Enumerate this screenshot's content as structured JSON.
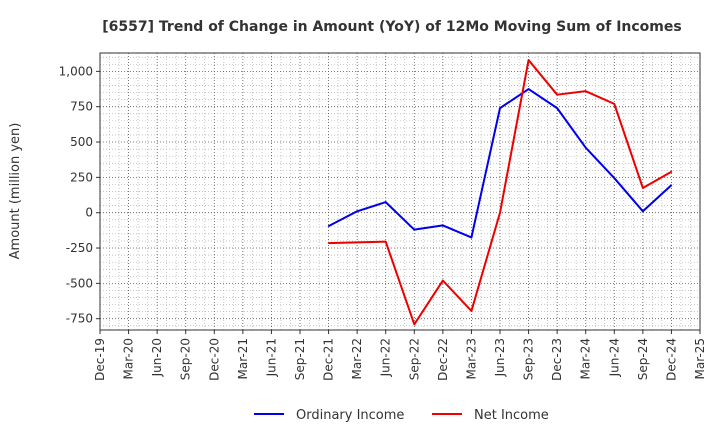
{
  "chart_data": {
    "type": "line",
    "title": "[6557]  Trend of Change in Amount (YoY) of 12Mo Moving Sum of Incomes",
    "ylabel": "Amount (million yen)",
    "xlabel": "",
    "ylim": [
      -830,
      1130
    ],
    "yticks": [
      -750,
      -500,
      -250,
      0,
      250,
      500,
      750,
      1000
    ],
    "ytick_labels": [
      "-750",
      "-500",
      "-250",
      "0",
      "250",
      "500",
      "750",
      "1,000"
    ],
    "categories": [
      "Dec-19",
      "Mar-20",
      "Jun-20",
      "Sep-20",
      "Dec-20",
      "Mar-21",
      "Jun-21",
      "Sep-21",
      "Dec-21",
      "Mar-22",
      "Jun-22",
      "Sep-22",
      "Dec-22",
      "Mar-23",
      "Jun-23",
      "Sep-23",
      "Dec-23",
      "Mar-24",
      "Jun-24",
      "Sep-24",
      "Dec-24",
      "Mar-25"
    ],
    "grid": true,
    "legend_position": "bottom",
    "series": [
      {
        "name": "Ordinary Income",
        "color": "#0000ee",
        "values": [
          null,
          null,
          null,
          null,
          null,
          null,
          null,
          null,
          -95,
          10,
          75,
          -120,
          -90,
          -175,
          740,
          875,
          740,
          460,
          245,
          10,
          195,
          null
        ]
      },
      {
        "name": "Net Income",
        "color": "#ee0000",
        "values": [
          null,
          null,
          null,
          null,
          null,
          null,
          null,
          null,
          -215,
          -210,
          -205,
          -790,
          -480,
          -695,
          0,
          1080,
          835,
          860,
          770,
          175,
          290,
          null
        ]
      }
    ]
  }
}
